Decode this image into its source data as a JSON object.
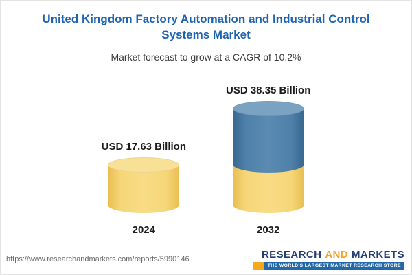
{
  "header": {
    "title": "United Kingdom Factory Automation and Industrial Control Systems Market",
    "subtitle": "Market forecast to grow at a CAGR of 10.2%"
  },
  "chart_data": {
    "type": "bar",
    "bar_style": "cylinder",
    "title": "United Kingdom Factory Automation and Industrial Control Systems Market",
    "subtitle": "Market forecast to grow at a CAGR of 10.2%",
    "categories": [
      "2024",
      "2032"
    ],
    "values": [
      17.63,
      38.35
    ],
    "unit": "USD Billion",
    "value_labels": [
      "USD 17.63 Billion",
      "USD 38.35 Billion"
    ],
    "cagr_percent": 10.2,
    "colors": {
      "yellow": "#F2CD66",
      "blue": "#4578A3"
    },
    "segments_2032": [
      {
        "color": "#F2CD66",
        "value": 17.63
      },
      {
        "color": "#4578A3",
        "value": 20.72
      }
    ],
    "legend_position": "none",
    "grid": false
  },
  "footer": {
    "url": "https://www.researchandmarkets.com/reports/5990146",
    "logo": {
      "research": "RESEARCH",
      "and": "AND",
      "markets": "MARKETS",
      "tagline": "THE WORLD'S LARGEST MARKET RESEARCH STORE"
    }
  }
}
